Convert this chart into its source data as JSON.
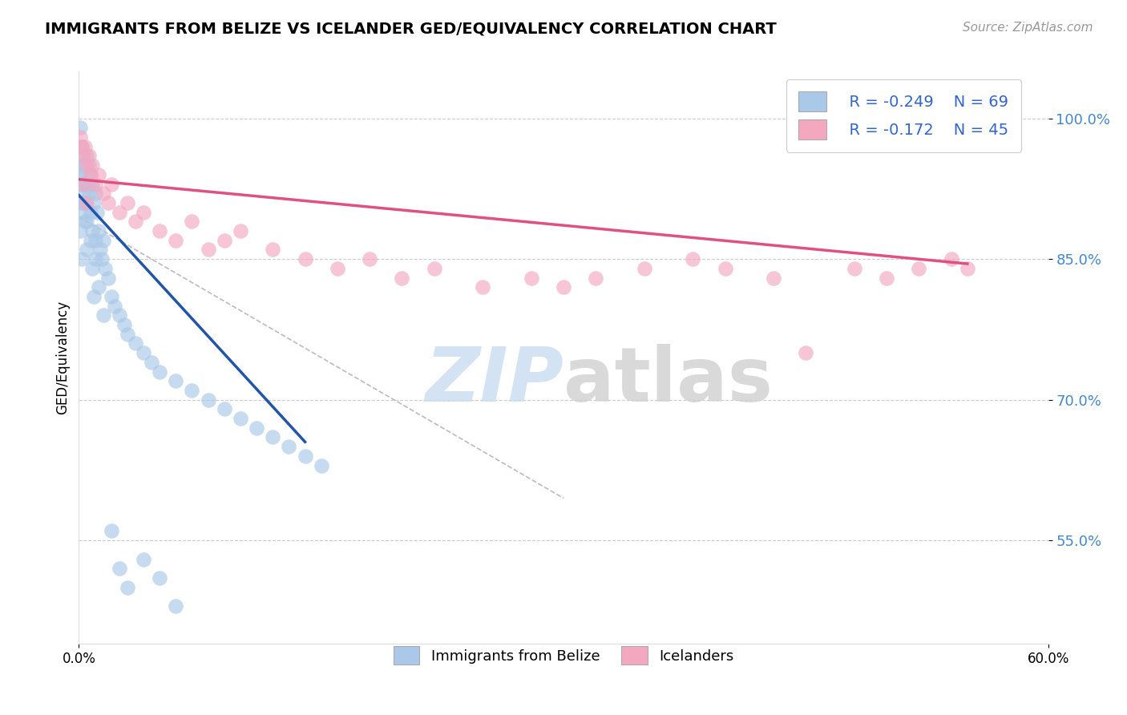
{
  "title": "IMMIGRANTS FROM BELIZE VS ICELANDER GED/EQUIVALENCY CORRELATION CHART",
  "source_text": "Source: ZipAtlas.com",
  "ylabel": "GED/Equivalency",
  "y_tick_labels": [
    "55.0%",
    "70.0%",
    "85.0%",
    "100.0%"
  ],
  "y_tick_values": [
    0.55,
    0.7,
    0.85,
    1.0
  ],
  "xlim": [
    0.0,
    0.6
  ],
  "ylim": [
    0.44,
    1.05
  ],
  "legend_r_blue": "R = -0.249",
  "legend_n_blue": "N = 69",
  "legend_r_pink": "R = -0.172",
  "legend_n_pink": "N = 45",
  "blue_color": "#aac8e8",
  "pink_color": "#f4a8c0",
  "blue_line_color": "#2255aa",
  "pink_line_color": "#e05080",
  "blue_scatter_x": [
    0.001,
    0.001,
    0.001,
    0.002,
    0.002,
    0.002,
    0.003,
    0.003,
    0.003,
    0.004,
    0.004,
    0.005,
    0.005,
    0.005,
    0.006,
    0.006,
    0.007,
    0.007,
    0.008,
    0.008,
    0.009,
    0.01,
    0.01,
    0.011,
    0.012,
    0.013,
    0.014,
    0.015,
    0.016,
    0.018,
    0.02,
    0.022,
    0.025,
    0.028,
    0.03,
    0.035,
    0.04,
    0.045,
    0.05,
    0.06,
    0.07,
    0.08,
    0.09,
    0.1,
    0.11,
    0.12,
    0.13,
    0.14,
    0.15,
    0.001,
    0.001,
    0.002,
    0.002,
    0.003,
    0.004,
    0.005,
    0.006,
    0.007,
    0.008,
    0.009,
    0.01,
    0.012,
    0.015,
    0.02,
    0.025,
    0.03,
    0.04,
    0.05,
    0.06
  ],
  "blue_scatter_y": [
    0.97,
    0.95,
    0.93,
    0.96,
    0.94,
    0.91,
    0.95,
    0.93,
    0.9,
    0.94,
    0.91,
    0.96,
    0.93,
    0.89,
    0.95,
    0.92,
    0.94,
    0.9,
    0.93,
    0.88,
    0.91,
    0.92,
    0.87,
    0.9,
    0.88,
    0.86,
    0.85,
    0.87,
    0.84,
    0.83,
    0.81,
    0.8,
    0.79,
    0.78,
    0.77,
    0.76,
    0.75,
    0.74,
    0.73,
    0.72,
    0.71,
    0.7,
    0.69,
    0.68,
    0.67,
    0.66,
    0.65,
    0.64,
    0.63,
    0.99,
    0.88,
    0.97,
    0.85,
    0.92,
    0.89,
    0.86,
    0.93,
    0.87,
    0.84,
    0.81,
    0.85,
    0.82,
    0.79,
    0.56,
    0.52,
    0.5,
    0.53,
    0.51,
    0.48
  ],
  "pink_scatter_x": [
    0.001,
    0.002,
    0.003,
    0.004,
    0.005,
    0.006,
    0.007,
    0.008,
    0.01,
    0.012,
    0.015,
    0.018,
    0.02,
    0.025,
    0.03,
    0.035,
    0.04,
    0.05,
    0.06,
    0.07,
    0.08,
    0.09,
    0.1,
    0.12,
    0.14,
    0.16,
    0.18,
    0.2,
    0.22,
    0.25,
    0.28,
    0.3,
    0.32,
    0.35,
    0.38,
    0.4,
    0.43,
    0.45,
    0.48,
    0.5,
    0.52,
    0.54,
    0.003,
    0.005,
    0.55
  ],
  "pink_scatter_y": [
    0.98,
    0.97,
    0.96,
    0.97,
    0.95,
    0.96,
    0.94,
    0.95,
    0.93,
    0.94,
    0.92,
    0.91,
    0.93,
    0.9,
    0.91,
    0.89,
    0.9,
    0.88,
    0.87,
    0.89,
    0.86,
    0.87,
    0.88,
    0.86,
    0.85,
    0.84,
    0.85,
    0.83,
    0.84,
    0.82,
    0.83,
    0.82,
    0.83,
    0.84,
    0.85,
    0.84,
    0.83,
    0.75,
    0.84,
    0.83,
    0.84,
    0.85,
    0.93,
    0.91,
    0.84
  ],
  "blue_trend_x": [
    0.0,
    0.14
  ],
  "blue_trend_y": [
    0.918,
    0.655
  ],
  "pink_trend_x": [
    0.0,
    0.55
  ],
  "pink_trend_y": [
    0.935,
    0.845
  ],
  "dash_line_x": [
    0.0,
    0.3
  ],
  "dash_line_y": [
    0.895,
    0.595
  ]
}
